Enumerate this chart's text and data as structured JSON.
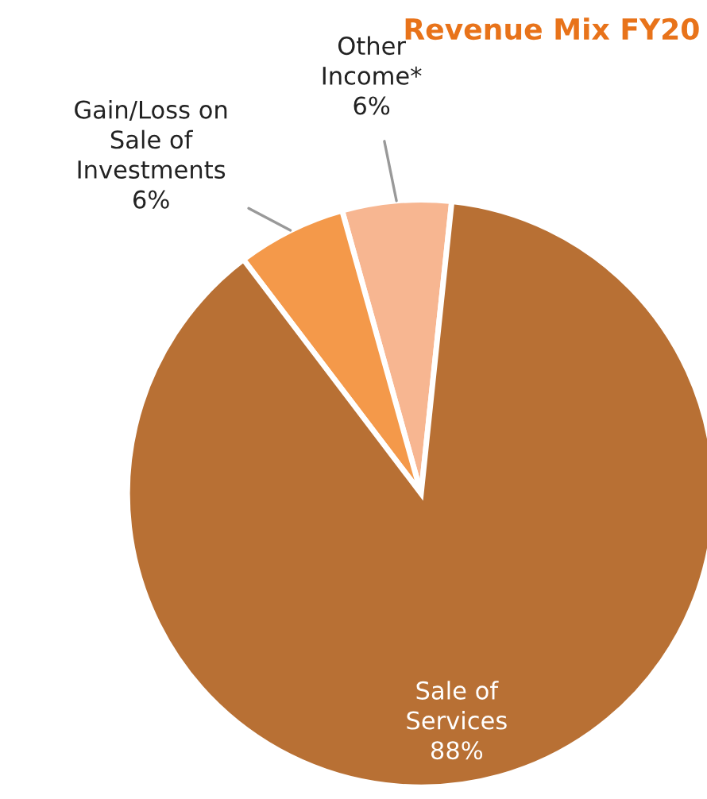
{
  "chart_data": {
    "type": "pie",
    "title": "Revenue Mix FY20",
    "categories": [
      "Other\nIncome*",
      "Gain/Loss on\nSale of\nInvestments",
      "Sale of\nServices"
    ],
    "values": [
      6,
      6,
      88
    ],
    "colors": [
      "#f7b691",
      "#f4994a",
      "#b87034"
    ],
    "value_labels": [
      "6%",
      "6%",
      "88%"
    ]
  }
}
